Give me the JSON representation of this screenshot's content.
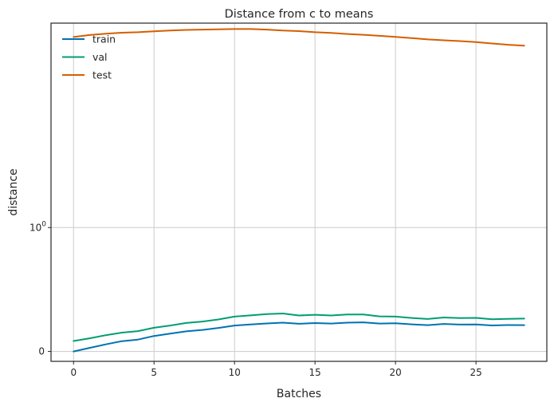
{
  "chart_data": {
    "type": "line",
    "title": "Distance from c to means",
    "xlabel": "Batches",
    "ylabel": "distance",
    "xlim": [
      -1.4,
      29.4
    ],
    "x_ticks": [
      0,
      5,
      10,
      15,
      20,
      25
    ],
    "y_scale": "symlog",
    "y_ticks": [
      {
        "value": 0,
        "label": "0"
      },
      {
        "value": 1,
        "label": "10",
        "exp": "0"
      }
    ],
    "grid": true,
    "legend": {
      "position": "top-left"
    },
    "series": [
      {
        "name": "train",
        "color": "#0072b2",
        "x": [
          0,
          1,
          2,
          3,
          4,
          5,
          6,
          7,
          8,
          9,
          10,
          11,
          12,
          13,
          14,
          15,
          16,
          17,
          18,
          19,
          20,
          21,
          22,
          23,
          24,
          25,
          26,
          27,
          28
        ],
        "values": [
          0.0,
          0.029,
          0.057,
          0.083,
          0.096,
          0.125,
          0.144,
          0.162,
          0.174,
          0.19,
          0.209,
          0.218,
          0.226,
          0.232,
          0.223,
          0.229,
          0.225,
          0.232,
          0.235,
          0.225,
          0.227,
          0.219,
          0.212,
          0.222,
          0.217,
          0.218,
          0.21,
          0.213,
          0.212
        ]
      },
      {
        "name": "val",
        "color": "#009e73",
        "x": [
          0,
          1,
          2,
          3,
          4,
          5,
          6,
          7,
          8,
          9,
          10,
          11,
          12,
          13,
          14,
          15,
          16,
          17,
          18,
          19,
          20,
          21,
          22,
          23,
          24,
          25,
          26,
          27,
          28
        ],
        "values": [
          0.084,
          0.106,
          0.131,
          0.152,
          0.164,
          0.191,
          0.209,
          0.23,
          0.241,
          0.258,
          0.281,
          0.291,
          0.301,
          0.306,
          0.29,
          0.296,
          0.29,
          0.298,
          0.298,
          0.283,
          0.281,
          0.27,
          0.262,
          0.274,
          0.269,
          0.271,
          0.259,
          0.263,
          0.265
        ]
      },
      {
        "name": "test",
        "color": "#d55e00",
        "x": [
          0,
          1,
          2,
          3,
          4,
          5,
          6,
          7,
          8,
          9,
          10,
          11,
          12,
          13,
          14,
          15,
          16,
          17,
          18,
          19,
          20,
          21,
          22,
          23,
          24,
          25,
          26,
          27,
          28
        ],
        "values": [
          34.5,
          35.8,
          36.7,
          37.4,
          37.7,
          38.4,
          38.9,
          39.4,
          39.6,
          39.8,
          40.0,
          40.0,
          39.6,
          38.9,
          38.5,
          37.7,
          37.2,
          36.5,
          36.0,
          35.3,
          34.6,
          33.8,
          33.0,
          32.5,
          32.0,
          31.4,
          30.6,
          29.9,
          29.4
        ]
      }
    ]
  }
}
